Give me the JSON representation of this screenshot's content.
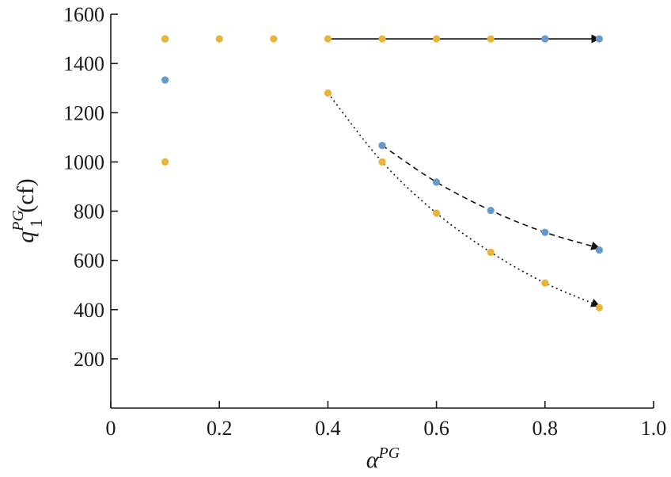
{
  "chart_data": {
    "type": "scatter",
    "title": "",
    "xlabel": {
      "base": "α",
      "sup": "PG"
    },
    "ylabel": {
      "base": "q",
      "sub": "1",
      "sup": "PG",
      "unit": " (cf)"
    },
    "xlim": [
      0,
      1.0
    ],
    "ylim": [
      0,
      1600
    ],
    "xticks": [
      {
        "value": 0,
        "label": "0"
      },
      {
        "value": 0.2,
        "label": "0.2"
      },
      {
        "value": 0.4,
        "label": "0.4"
      },
      {
        "value": 0.6,
        "label": "0.6"
      },
      {
        "value": 0.8,
        "label": "0.8"
      },
      {
        "value": 1.0,
        "label": "1.0"
      }
    ],
    "yticks": [
      {
        "value": 200,
        "label": "200"
      },
      {
        "value": 400,
        "label": "400"
      },
      {
        "value": 600,
        "label": "600"
      },
      {
        "value": 800,
        "label": "800"
      },
      {
        "value": 1000,
        "label": "1000"
      },
      {
        "value": 1200,
        "label": "1200"
      },
      {
        "value": 1400,
        "label": "1400"
      },
      {
        "value": 1600,
        "label": "1600"
      }
    ],
    "grid": false,
    "legend": "none",
    "series": [
      {
        "color": "#6699cc",
        "points": [
          [
            0.1,
            1500
          ],
          [
            0.1,
            1333
          ],
          [
            0.5,
            1067
          ],
          [
            0.6,
            918
          ],
          [
            0.7,
            803
          ],
          [
            0.8,
            714
          ],
          [
            0.9,
            642
          ],
          [
            0.8,
            1500
          ],
          [
            0.9,
            1500
          ]
        ]
      },
      {
        "color": "#e8b43a",
        "points": [
          [
            0.1,
            1500
          ],
          [
            0.2,
            1500
          ],
          [
            0.3,
            1500
          ],
          [
            0.4,
            1500
          ],
          [
            0.5,
            1500
          ],
          [
            0.6,
            1500
          ],
          [
            0.7,
            1500
          ],
          [
            0.1,
            1000
          ],
          [
            0.4,
            1280
          ],
          [
            0.5,
            1000
          ],
          [
            0.6,
            792
          ],
          [
            0.7,
            633
          ],
          [
            0.8,
            508
          ],
          [
            0.9,
            408
          ]
        ]
      }
    ],
    "arrows": [
      {
        "style": "solid",
        "points": [
          [
            0.4,
            1500
          ],
          [
            0.9,
            1500
          ]
        ]
      },
      {
        "style": "dashed",
        "points": [
          [
            0.5,
            1067
          ],
          [
            0.6,
            918
          ],
          [
            0.7,
            803
          ],
          [
            0.8,
            714
          ],
          [
            0.9,
            650
          ]
        ]
      },
      {
        "style": "dotted",
        "points": [
          [
            0.4,
            1280
          ],
          [
            0.5,
            1000
          ],
          [
            0.6,
            792
          ],
          [
            0.7,
            633
          ],
          [
            0.8,
            508
          ],
          [
            0.9,
            415
          ]
        ]
      }
    ]
  }
}
